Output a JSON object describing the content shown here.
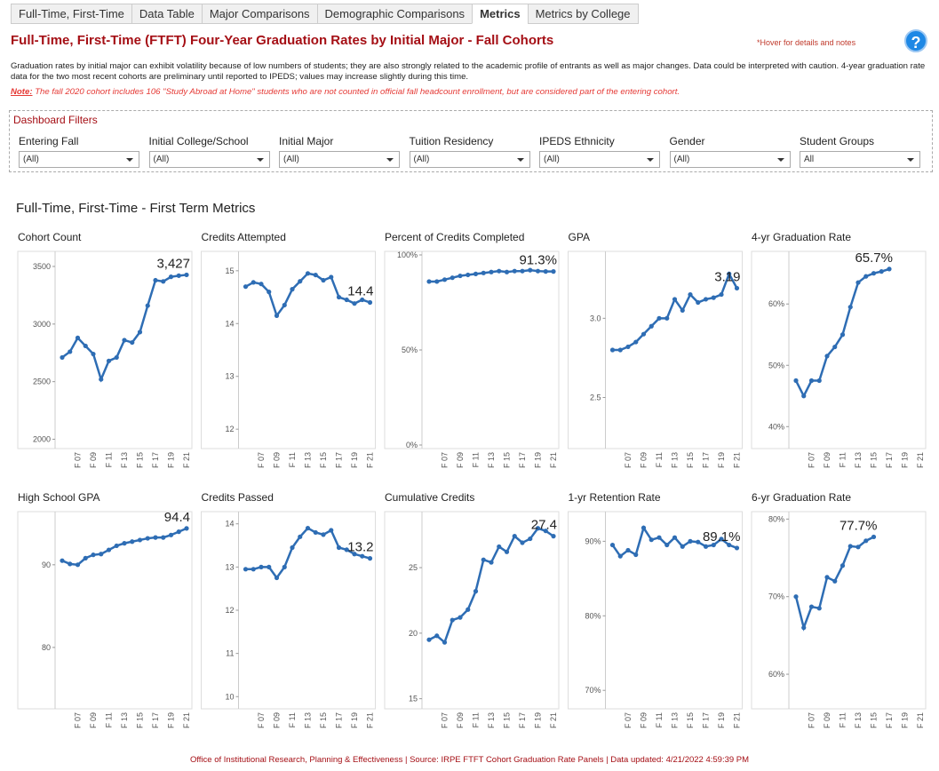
{
  "tabs": [
    "Full-Time, First-Time",
    "Data Table",
    "Major Comparisons",
    "Demographic Comparisons",
    "Metrics",
    "Metrics by College"
  ],
  "header": {
    "title": "Full-Time, First-Time (FTFT) Four-Year Graduation Rates by Initial Major - Fall Cohorts",
    "hint": "*Hover for details and notes",
    "description": "Graduation rates by initial major can exhibit volatility because of low numbers of students; they are also strongly related to the academic profile of entrants as well as major changes. Data could be interpreted with caution. 4-year graduation rate data for the two most recent cohorts are preliminary until reported to IPEDS; values may increase slightly during this time.",
    "note_label": "Note:",
    "note": "The fall 2020 cohort includes 106 \"Study Abroad at Home\" students who are not counted in official fall headcount enrollment, but are considered part of the entering cohort."
  },
  "filters": {
    "title": "Dashboard Filters",
    "items": [
      {
        "label": "Entering Fall",
        "value": "(All)"
      },
      {
        "label": "Initial College/School",
        "value": "(All)"
      },
      {
        "label": "Initial Major",
        "value": "(All)"
      },
      {
        "label": "Tuition Residency",
        "value": "(All)"
      },
      {
        "label": "IPEDS Ethnicity",
        "value": "(All)"
      },
      {
        "label": "Gender",
        "value": "(All)"
      },
      {
        "label": "Student Groups",
        "value": "All"
      }
    ]
  },
  "section_title": "Full-Time, First-Time - First Term Metrics",
  "chart_data": [
    {
      "type": "line",
      "title": "Cohort Count",
      "color": "#2e6db4",
      "categories": [
        null,
        null,
        "F 07",
        null,
        "F 09",
        null,
        "F 11",
        null,
        "F 13",
        null,
        "F 15",
        null,
        "F 17",
        null,
        "F 19",
        null,
        "F 21"
      ],
      "values": [
        2710,
        2760,
        2880,
        2810,
        2740,
        2520,
        2680,
        2710,
        2860,
        2840,
        2930,
        3160,
        3380,
        3370,
        3410,
        3420,
        3427
      ],
      "value_labels": [
        null,
        null,
        null,
        null,
        null,
        null,
        null,
        null,
        null,
        null,
        null,
        null,
        null,
        null,
        null,
        null,
        "3,427"
      ],
      "ylim": [
        1950,
        3600
      ],
      "yticks": [
        2000,
        2500,
        3000,
        3500
      ]
    },
    {
      "type": "line",
      "title": "Credits Attempted",
      "color": "#2e6db4",
      "categories": [
        null,
        null,
        "F 07",
        null,
        "F 09",
        null,
        "F 11",
        null,
        "F 13",
        null,
        "F 15",
        null,
        "F 17",
        null,
        "F 19",
        null,
        "F 21"
      ],
      "values": [
        14.7,
        14.78,
        14.75,
        14.6,
        14.15,
        14.35,
        14.65,
        14.8,
        14.95,
        14.92,
        14.82,
        14.88,
        14.5,
        14.45,
        14.38,
        14.45,
        14.4
      ],
      "value_labels": [
        null,
        null,
        null,
        null,
        null,
        null,
        null,
        null,
        null,
        null,
        null,
        null,
        null,
        null,
        null,
        null,
        "14.4"
      ],
      "ylim": [
        11.7,
        15.3
      ],
      "yticks": [
        12,
        13,
        14,
        15
      ]
    },
    {
      "type": "line",
      "title": "Percent of Credits Completed",
      "color": "#2e6db4",
      "categories": [
        null,
        null,
        "F 07",
        null,
        "F 09",
        null,
        "F 11",
        null,
        "F 13",
        null,
        "F 15",
        null,
        "F 17",
        null,
        "F 19",
        null,
        "F 21"
      ],
      "values": [
        86,
        86,
        87,
        88,
        89,
        89.5,
        90,
        90.5,
        91,
        91.5,
        91,
        91.5,
        91.5,
        92,
        91.5,
        91.3,
        91.3
      ],
      "value_labels": [
        null,
        null,
        null,
        null,
        null,
        null,
        null,
        null,
        null,
        null,
        null,
        null,
        null,
        null,
        null,
        null,
        "91.3%"
      ],
      "ylim": [
        0,
        100
      ],
      "yticks": [
        {
          "value": 0,
          "label": "0%"
        },
        {
          "value": 50,
          "label": "50%"
        },
        {
          "value": 100,
          "label": "100%"
        }
      ]
    },
    {
      "type": "line",
      "title": "GPA",
      "color": "#2e6db4",
      "categories": [
        null,
        null,
        "F 07",
        null,
        "F 09",
        null,
        "F 11",
        null,
        "F 13",
        null,
        "F 15",
        null,
        "F 17",
        null,
        "F 19",
        null,
        "F 21"
      ],
      "values": [
        2.8,
        2.8,
        2.82,
        2.85,
        2.9,
        2.95,
        3.0,
        3.0,
        3.12,
        3.05,
        3.15,
        3.1,
        3.12,
        3.13,
        3.15,
        3.28,
        3.19
      ],
      "value_labels": [
        null,
        null,
        null,
        null,
        null,
        null,
        null,
        null,
        null,
        null,
        null,
        null,
        null,
        null,
        null,
        null,
        "3.19"
      ],
      "ylim": [
        2.2,
        3.4
      ],
      "yticks": [
        2.5,
        {
          "value": 3,
          "label": "3.0"
        }
      ]
    },
    {
      "type": "line",
      "title": "4-yr Graduation Rate",
      "color": "#2e6db4",
      "categories": [
        null,
        null,
        "F 07",
        null,
        "F 09",
        null,
        "F 11",
        null,
        "F 13",
        null,
        "F 15",
        null,
        "F 17",
        null,
        "F 19",
        null,
        "F 21"
      ],
      "values": [
        47.5,
        45,
        47.5,
        47.5,
        51.5,
        53,
        55,
        59.5,
        63.5,
        64.5,
        65,
        65.3,
        65.7,
        null,
        null,
        null,
        null
      ],
      "value_labels": [
        null,
        null,
        null,
        null,
        null,
        null,
        null,
        null,
        null,
        null,
        null,
        null,
        "65.7%",
        null,
        null,
        null,
        null
      ],
      "ylim": [
        37,
        68
      ],
      "yticks": [
        {
          "value": 40,
          "label": "40%"
        },
        {
          "value": 50,
          "label": "50%"
        },
        {
          "value": 60,
          "label": "60%"
        }
      ]
    },
    {
      "type": "line",
      "title": "High School GPA",
      "color": "#2e6db4",
      "categories": [
        null,
        null,
        "F 07",
        null,
        "F 09",
        null,
        "F 11",
        null,
        "F 13",
        null,
        "F 15",
        null,
        "F 17",
        null,
        "F 19",
        null,
        "F 21"
      ],
      "values": [
        90.5,
        90.1,
        90,
        90.8,
        91.2,
        91.3,
        91.8,
        92.3,
        92.6,
        92.8,
        93,
        93.2,
        93.3,
        93.3,
        93.6,
        94,
        94.4
      ],
      "value_labels": [
        null,
        null,
        null,
        null,
        null,
        null,
        null,
        null,
        null,
        null,
        null,
        null,
        null,
        null,
        null,
        null,
        "94.4"
      ],
      "ylim": [
        73,
        96
      ],
      "yticks": [
        80,
        90
      ]
    },
    {
      "type": "line",
      "title": "Credits Passed",
      "color": "#2e6db4",
      "categories": [
        null,
        null,
        "F 07",
        null,
        "F 09",
        null,
        "F 11",
        null,
        "F 13",
        null,
        "F 15",
        null,
        "F 17",
        null,
        "F 19",
        null,
        "F 21"
      ],
      "values": [
        12.95,
        12.95,
        13,
        13,
        12.75,
        13,
        13.45,
        13.7,
        13.9,
        13.8,
        13.75,
        13.85,
        13.45,
        13.4,
        13.3,
        13.25,
        13.2
      ],
      "value_labels": [
        null,
        null,
        null,
        null,
        null,
        null,
        null,
        null,
        null,
        null,
        null,
        null,
        null,
        null,
        null,
        null,
        "13.2"
      ],
      "ylim": [
        9.8,
        14.2
      ],
      "yticks": [
        10,
        11,
        12,
        13,
        14
      ]
    },
    {
      "type": "line",
      "title": "Cumulative Credits",
      "color": "#2e6db4",
      "categories": [
        null,
        null,
        "F 07",
        null,
        "F 09",
        null,
        "F 11",
        null,
        "F 13",
        null,
        "F 15",
        null,
        "F 17",
        null,
        "F 19",
        null,
        "F 21"
      ],
      "values": [
        19.5,
        19.8,
        19.3,
        21,
        21.2,
        21.8,
        23.2,
        25.6,
        25.4,
        26.6,
        26.2,
        27.4,
        26.9,
        27.2,
        28,
        27.8,
        27.4
      ],
      "value_labels": [
        null,
        null,
        null,
        null,
        null,
        null,
        null,
        null,
        null,
        null,
        null,
        null,
        null,
        null,
        null,
        null,
        "27.4"
      ],
      "ylim": [
        14.5,
        29
      ],
      "yticks": [
        15,
        20,
        25
      ]
    },
    {
      "type": "line",
      "title": "1-yr Retention Rate",
      "color": "#2e6db4",
      "categories": [
        null,
        null,
        "F 07",
        null,
        "F 09",
        null,
        "F 11",
        null,
        "F 13",
        null,
        "F 15",
        null,
        "F 17",
        null,
        "F 19",
        null,
        "F 21"
      ],
      "values": [
        89.5,
        88,
        88.8,
        88.2,
        91.8,
        90.2,
        90.5,
        89.5,
        90.5,
        89.3,
        90,
        89.9,
        89.3,
        89.5,
        90.3,
        89.5,
        89.1
      ],
      "value_labels": [
        null,
        null,
        null,
        null,
        null,
        null,
        null,
        null,
        null,
        null,
        null,
        null,
        null,
        null,
        null,
        null,
        "89.1%"
      ],
      "ylim": [
        68,
        93.5
      ],
      "yticks": [
        {
          "value": 70,
          "label": "70%"
        },
        {
          "value": 80,
          "label": "80%"
        },
        {
          "value": 90,
          "label": "90%"
        }
      ]
    },
    {
      "type": "line",
      "title": "6-yr Graduation Rate",
      "color": "#2e6db4",
      "categories": [
        null,
        null,
        "F 07",
        null,
        "F 09",
        null,
        "F 11",
        null,
        "F 13",
        null,
        "F 15",
        null,
        "F 17",
        null,
        "F 19",
        null,
        "F 21"
      ],
      "values": [
        70,
        66,
        68.7,
        68.5,
        72.5,
        72,
        74,
        76.5,
        76.4,
        77.2,
        77.7,
        null,
        null,
        null,
        null,
        null,
        null
      ],
      "value_labels": [
        null,
        null,
        null,
        null,
        null,
        null,
        null,
        null,
        null,
        null,
        "77.7%",
        null,
        null,
        null,
        null,
        null,
        null
      ],
      "ylim": [
        56,
        80.5
      ],
      "yticks": [
        {
          "value": 60,
          "label": "60%"
        },
        {
          "value": 70,
          "label": "70%"
        },
        {
          "value": 80,
          "label": "80%"
        }
      ]
    }
  ],
  "footer": "Office of Institutional Research, Planning & Effectiveness  |  Source: IRPE FTFT Cohort Graduation Rate Panels  |  Data updated: 4/21/2022 4:59:39 PM"
}
